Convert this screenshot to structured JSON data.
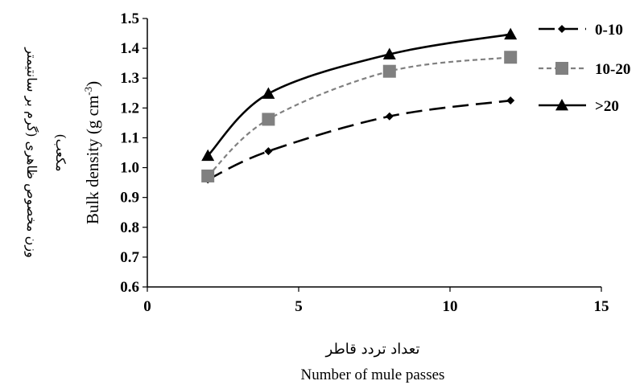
{
  "chart_data": {
    "type": "line",
    "x": [
      2,
      4,
      8,
      12
    ],
    "series": [
      {
        "name": "0-10",
        "values": [
          0.96,
          1.055,
          1.172,
          1.225
        ],
        "color": "#000000",
        "dash": "long-dash",
        "marker": "diamond"
      },
      {
        "name": "10-20",
        "values": [
          0.972,
          1.162,
          1.323,
          1.37
        ],
        "color": "#808080",
        "dash": "short-dash",
        "marker": "square"
      },
      {
        "name": ">20",
        "values": [
          1.04,
          1.248,
          1.38,
          1.447
        ],
        "color": "#000000",
        "dash": "solid",
        "marker": "triangle"
      }
    ],
    "xlabel": "Number of mule passes",
    "xlabel_fa": "تعداد تردد قاطر",
    "ylabel": "Bulk density (g cm",
    "ylabel_sup": "-3",
    "ylabel_close": ")",
    "ylabel_fa": [
      "وزن مخصوص ظاهری (گرم بر سانتیمتر",
      "مکعب)"
    ],
    "xlim": [
      0,
      15
    ],
    "ylim": [
      0.6,
      1.5
    ],
    "xticks": [
      "0",
      "5",
      "10",
      "15"
    ],
    "yticks": [
      "0.6",
      "0.7",
      "0.8",
      "0.9",
      "1.0",
      "1.1",
      "1.2",
      "1.3",
      "1.4",
      "1.5"
    ],
    "grid": false,
    "legend_position": "right"
  }
}
